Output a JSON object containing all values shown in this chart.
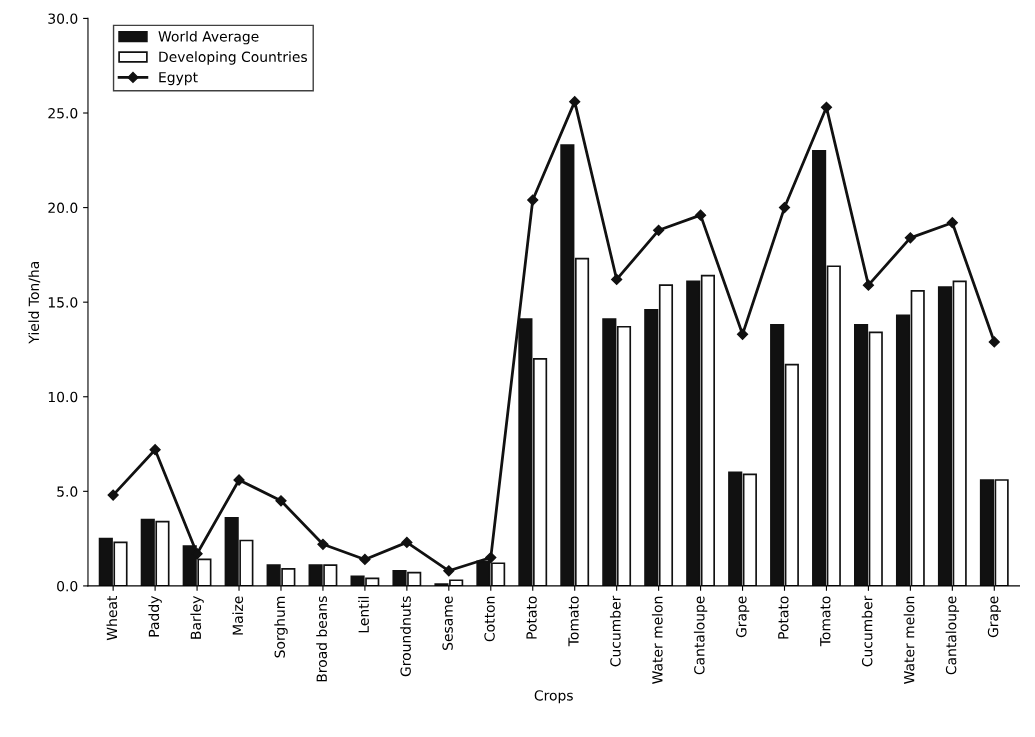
{
  "chart_data": {
    "type": "bar",
    "xlabel": "Crops",
    "ylabel": "Yield Ton/ha",
    "categories": [
      "Wheat",
      "Paddy",
      "Barley",
      "Maize",
      "Sorghum",
      "Broad beans",
      "Lentil",
      "Groundnuts",
      "Sesame",
      "Cotton",
      "Potato",
      "Tomato",
      "Cucumber",
      "Water melon",
      "Cantaloupe",
      "Grape",
      "Potato",
      "Tomato",
      "Cucumber",
      "Water melon",
      "Cantaloupe",
      "Grape"
    ],
    "series": [
      {
        "name": "World Average",
        "color": "#111111",
        "values": [
          2.5,
          3.5,
          2.1,
          3.6,
          1.1,
          1.1,
          0.5,
          0.8,
          0.1,
          1.3,
          14.1,
          23.3,
          14.1,
          14.6,
          16.1,
          6.0,
          13.8,
          23.0,
          13.8,
          14.3,
          15.8,
          5.6
        ]
      },
      {
        "name": "Developing Countries",
        "color": "#ffffff",
        "values": [
          2.3,
          3.4,
          1.4,
          2.4,
          0.9,
          1.1,
          0.4,
          0.7,
          0.3,
          1.2,
          12.0,
          17.3,
          13.7,
          15.9,
          16.4,
          5.9,
          11.7,
          16.9,
          13.4,
          15.6,
          16.1,
          5.6
        ]
      },
      {
        "name": "Egypt",
        "type": "line",
        "color": "#111111",
        "values": [
          4.8,
          7.2,
          1.7,
          5.6,
          4.5,
          2.2,
          1.4,
          2.3,
          0.8,
          1.5,
          20.4,
          25.6,
          16.2,
          18.8,
          19.6,
          13.3,
          20.0,
          25.3,
          15.9,
          18.4,
          19.2,
          12.9
        ]
      }
    ],
    "ylim": [
      0,
      30
    ],
    "yticks": [
      {
        "value": 0,
        "label": "0.0"
      },
      {
        "value": 5,
        "label": "5.0"
      },
      {
        "value": 10,
        "label": "10.0"
      },
      {
        "value": 15,
        "label": "15.0"
      },
      {
        "value": 20,
        "label": "20.0"
      },
      {
        "value": 25,
        "label": "25.0"
      },
      {
        "value": 30,
        "label": "30.0"
      }
    ],
    "legend": "top left",
    "marker": "diamond",
    "line_style": "solid"
  }
}
